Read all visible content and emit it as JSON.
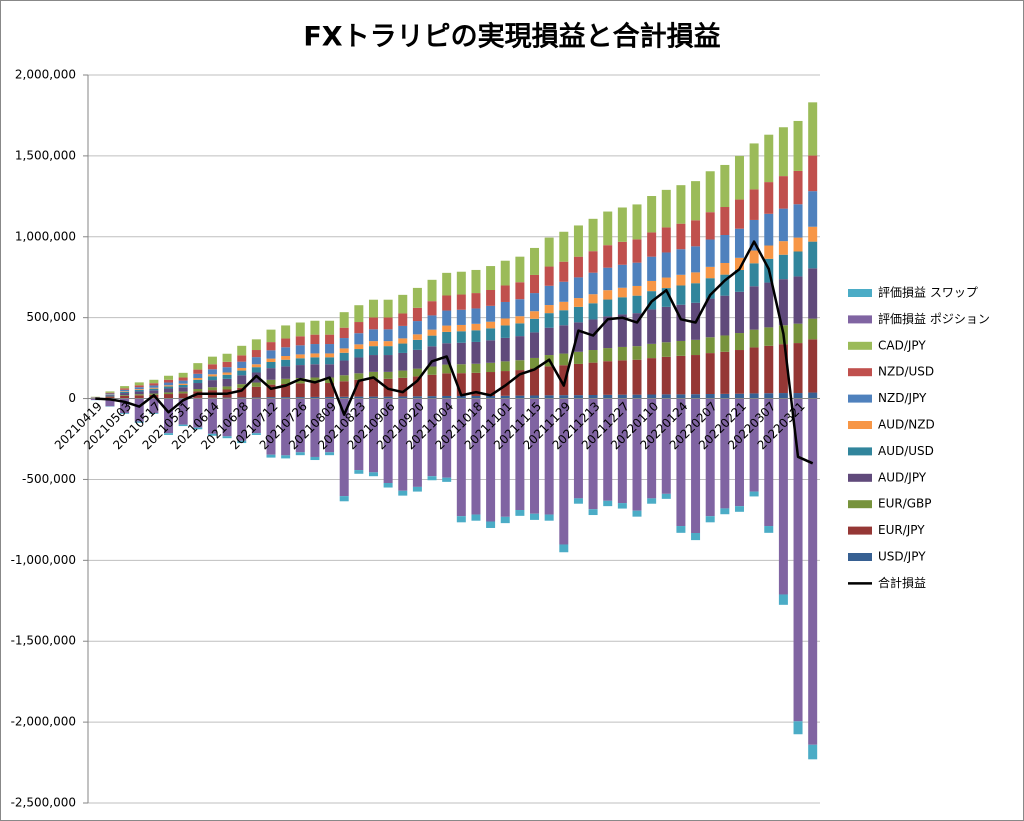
{
  "chart_data": {
    "type": "bar",
    "stacked": true,
    "title": "FXトラリピの実現損益と合計損益",
    "categories": [
      "20210419",
      null,
      "20210503",
      null,
      "20210517",
      null,
      "20210531",
      null,
      "20210614",
      null,
      "20210628",
      null,
      "20210712",
      null,
      "20210726",
      null,
      "20210809",
      null,
      "20210823",
      null,
      "20210906",
      null,
      "20210920",
      null,
      "20211004",
      null,
      "20211018",
      null,
      "20211101",
      null,
      "20211115",
      null,
      "20211129",
      null,
      "20211213",
      null,
      "20211227",
      null,
      "20220110",
      null,
      "20220124",
      null,
      "20220207",
      null,
      "20220221",
      null,
      "20220307",
      null,
      "20220321",
      null
    ],
    "ylim": [
      -2500000,
      2000000
    ],
    "yticks": [
      {
        "value": -2500000,
        "label": "-2,500,000"
      },
      {
        "value": -2000000,
        "label": "-2,000,000"
      },
      {
        "value": -1500000,
        "label": "-1,500,000"
      },
      {
        "value": -1000000,
        "label": "-1,000,000"
      },
      {
        "value": -500000,
        "label": "-500,000"
      },
      0,
      {
        "value": 500000,
        "label": "500,000"
      },
      {
        "value": 1000000,
        "label": "1,000,000"
      },
      {
        "value": 1500000,
        "label": "1,500,000"
      },
      {
        "value": 2000000,
        "label": "2,000,000"
      }
    ],
    "grid": true,
    "negative_tick_color": "#ff0000",
    "legend": "right",
    "series": [
      {
        "name": "評価損益 スワップ",
        "color": "#4bacc6",
        "values": [
          -1000,
          -2000,
          -5000,
          -8000,
          -5000,
          -11000,
          -9000,
          -10000,
          -12000,
          -12000,
          -14000,
          -11000,
          -18000,
          -19000,
          -18000,
          -19000,
          -18000,
          -32000,
          -23000,
          -24000,
          -28000,
          -30000,
          -29000,
          -25000,
          -26000,
          -38000,
          -38000,
          -40000,
          -39000,
          -36000,
          -38000,
          -38000,
          -48000,
          -33000,
          -36000,
          -33000,
          -34000,
          -37000,
          -33000,
          -31000,
          -42000,
          -44000,
          -38000,
          -36000,
          -35000,
          -30000,
          -42000,
          -64000,
          -80000,
          -90000
        ]
      },
      {
        "name": "評価損益 ポジション",
        "color": "#8064a2",
        "values": [
          -9000,
          -48000,
          -90000,
          -142000,
          -90000,
          -214000,
          -161000,
          -180000,
          -218000,
          -233000,
          -261000,
          -214000,
          -347000,
          -351000,
          -332000,
          -361000,
          -332000,
          -603000,
          -442000,
          -456000,
          -522000,
          -570000,
          -546000,
          -480000,
          -489000,
          -727000,
          -717000,
          -760000,
          -731000,
          -689000,
          -712000,
          -717000,
          -902000,
          -617000,
          -684000,
          -632000,
          -646000,
          -693000,
          -617000,
          -589000,
          -788000,
          -831000,
          -727000,
          -679000,
          -665000,
          -575000,
          -788000,
          -1211000,
          -1995000,
          -2140000
        ]
      },
      {
        "name": "CAD/JPY",
        "color": "#9bbb59",
        "values": [
          2000,
          8000,
          14000,
          18000,
          21000,
          25000,
          29000,
          40000,
          47000,
          50000,
          59000,
          66000,
          77000,
          81000,
          85000,
          86000,
          86000,
          96000,
          104000,
          110000,
          110000,
          115000,
          123000,
          132000,
          140000,
          141000,
          143000,
          148000,
          153000,
          158000,
          167000,
          179000,
          185000,
          193000,
          200000,
          208000,
          212000,
          216000,
          225000,
          232000,
          238000,
          242000,
          253000,
          260000,
          270000,
          284000,
          293000,
          302000,
          309000,
          329000
        ]
      },
      {
        "name": "NZD/USD",
        "color": "#c0504d",
        "values": [
          1000,
          5000,
          9000,
          12000,
          14000,
          17000,
          19000,
          26000,
          31000,
          33000,
          39000,
          44000,
          51000,
          54000,
          56000,
          58000,
          58000,
          64000,
          69000,
          73000,
          73000,
          77000,
          82000,
          88000,
          93000,
          94000,
          95000,
          98000,
          102000,
          105000,
          112000,
          119000,
          124000,
          128000,
          133000,
          139000,
          142000,
          144000,
          150000,
          155000,
          158000,
          161000,
          169000,
          173000,
          180000,
          189000,
          196000,
          201000,
          206000,
          220000
        ]
      },
      {
        "name": "NZD/JPY",
        "color": "#4f81bd",
        "values": [
          1000,
          5000,
          9000,
          12000,
          14000,
          17000,
          19000,
          26000,
          31000,
          33000,
          39000,
          44000,
          51000,
          54000,
          56000,
          58000,
          58000,
          64000,
          69000,
          73000,
          73000,
          77000,
          82000,
          88000,
          93000,
          94000,
          95000,
          98000,
          102000,
          105000,
          112000,
          119000,
          124000,
          128000,
          133000,
          139000,
          142000,
          144000,
          150000,
          155000,
          158000,
          161000,
          169000,
          173000,
          180000,
          189000,
          196000,
          201000,
          206000,
          220000
        ]
      },
      {
        "name": "AUD/NZD",
        "color": "#f79646",
        "values": [
          1000,
          2000,
          4000,
          5000,
          6000,
          7000,
          8000,
          11000,
          13000,
          14000,
          16000,
          18000,
          21000,
          23000,
          24000,
          24000,
          24000,
          27000,
          29000,
          31000,
          31000,
          32000,
          34000,
          37000,
          39000,
          39000,
          40000,
          41000,
          43000,
          44000,
          47000,
          50000,
          52000,
          54000,
          56000,
          58000,
          59000,
          60000,
          63000,
          65000,
          66000,
          67000,
          70000,
          72000,
          75000,
          79000,
          82000,
          84000,
          86000,
          92000
        ]
      },
      {
        "name": "AUD/USD",
        "color": "#31859c",
        "values": [
          1000,
          4000,
          7000,
          9000,
          10000,
          13000,
          14000,
          20000,
          23000,
          25000,
          29000,
          33000,
          38000,
          41000,
          42000,
          43000,
          43000,
          48000,
          52000,
          55000,
          55000,
          58000,
          62000,
          66000,
          70000,
          71000,
          72000,
          74000,
          77000,
          79000,
          84000,
          90000,
          93000,
          96000,
          100000,
          104000,
          106000,
          108000,
          113000,
          116000,
          119000,
          121000,
          126000,
          130000,
          135000,
          142000,
          147000,
          151000,
          154000,
          165000
        ]
      },
      {
        "name": "AUD/JPY",
        "color": "#604a7b",
        "values": [
          2000,
          8000,
          13000,
          17000,
          20000,
          24000,
          27000,
          37000,
          44000,
          47000,
          55000,
          62000,
          72000,
          77000,
          80000,
          82000,
          82000,
          91000,
          98000,
          104000,
          104000,
          109000,
          116000,
          125000,
          132000,
          133000,
          135000,
          139000,
          145000,
          149000,
          158000,
          169000,
          175000,
          182000,
          189000,
          196000,
          201000,
          204000,
          213000,
          219000,
          224000,
          229000,
          239000,
          246000,
          255000,
          268000,
          277000,
          285000,
          292000,
          311000
        ]
      },
      {
        "name": "EUR/GBP",
        "color": "#77933c",
        "values": [
          1000,
          3000,
          5000,
          7000,
          8000,
          10000,
          11000,
          15000,
          18000,
          19000,
          23000,
          26000,
          30000,
          32000,
          33000,
          34000,
          34000,
          37000,
          40000,
          43000,
          43000,
          45000,
          48000,
          51000,
          54000,
          55000,
          56000,
          57000,
          60000,
          61000,
          65000,
          70000,
          72000,
          75000,
          78000,
          81000,
          83000,
          84000,
          88000,
          90000,
          92000,
          94000,
          98000,
          101000,
          105000,
          110000,
          114000,
          117000,
          120000,
          128000
        ]
      },
      {
        "name": "EUR/JPY",
        "color": "#953735",
        "values": [
          2000,
          8000,
          14000,
          18000,
          21000,
          25000,
          29000,
          40000,
          47000,
          50000,
          59000,
          66000,
          77000,
          81000,
          85000,
          86000,
          86000,
          96000,
          104000,
          110000,
          110000,
          115000,
          123000,
          132000,
          140000,
          141000,
          143000,
          148000,
          153000,
          158000,
          167000,
          179000,
          185000,
          193000,
          200000,
          208000,
          212000,
          216000,
          225000,
          232000,
          238000,
          242000,
          253000,
          260000,
          270000,
          284000,
          293000,
          302000,
          309000,
          329000
        ]
      },
      {
        "name": "USD/JPY",
        "color": "#376092",
        "values": [
          0,
          1000,
          2000,
          2000,
          2000,
          3000,
          3000,
          4000,
          5000,
          6000,
          7000,
          7000,
          9000,
          9000,
          9000,
          10000,
          10000,
          11000,
          12000,
          12000,
          12000,
          13000,
          14000,
          15000,
          16000,
          16000,
          16000,
          16000,
          17000,
          18000,
          19000,
          20000,
          21000,
          21000,
          22000,
          23000,
          24000,
          24000,
          25000,
          26000,
          26000,
          27000,
          28000,
          29000,
          30000,
          32000,
          33000,
          34000,
          34000,
          37000
        ]
      },
      {
        "name": "合計損益",
        "color": "#000000",
        "type": "line",
        "values": [
          0,
          -5000,
          -20000,
          -50000,
          20000,
          -85000,
          -10000,
          30000,
          30000,
          30000,
          50000,
          140000,
          60000,
          80000,
          120000,
          100000,
          130000,
          -100000,
          110000,
          130000,
          60000,
          40000,
          110000,
          230000,
          260000,
          20000,
          40000,
          20000,
          80000,
          150000,
          180000,
          240000,
          80000,
          420000,
          390000,
          490000,
          500000,
          470000,
          600000,
          670000,
          490000,
          470000,
          640000,
          730000,
          800000,
          970000,
          800000,
          400000,
          -360000,
          -400000
        ]
      }
    ]
  }
}
